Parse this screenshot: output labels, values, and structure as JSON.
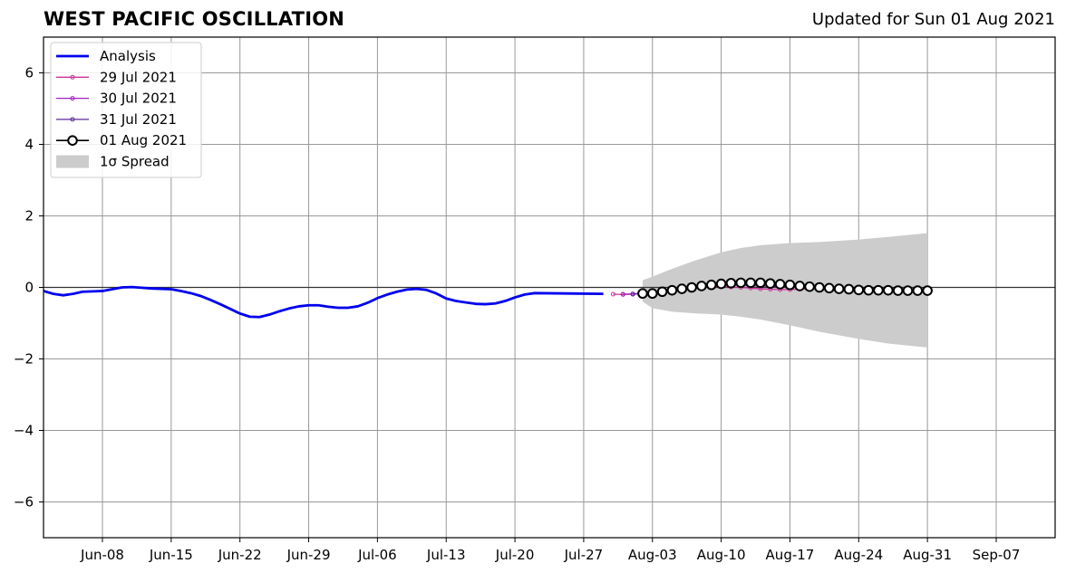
{
  "page": {
    "title": "WEST PACIFIC OSCILLATION",
    "updated": "Updated for Sun 01 Aug 2021"
  },
  "colors": {
    "analysis": "#0000ee",
    "jul29": "#cc3399",
    "jul30": "#a020c0",
    "jul31": "#5b2a9a",
    "aug01": "#000000",
    "spread": "#cccccc",
    "grid": "#999999"
  },
  "chart_data": {
    "type": "line",
    "title": "WEST PACIFIC OSCILLATION",
    "xlabel": "",
    "ylabel": "",
    "xlim": [
      "2021-06-02",
      "2021-09-13"
    ],
    "ylim": [
      -7,
      7
    ],
    "xticks": [
      "Jun-08",
      "Jun-15",
      "Jun-22",
      "Jun-29",
      "Jul-06",
      "Jul-13",
      "Jul-20",
      "Jul-27",
      "Aug-03",
      "Aug-10",
      "Aug-17",
      "Aug-24",
      "Aug-31",
      "Sep-07"
    ],
    "xtick_dates": [
      "2021-06-08",
      "2021-06-15",
      "2021-06-22",
      "2021-06-29",
      "2021-07-06",
      "2021-07-13",
      "2021-07-20",
      "2021-07-27",
      "2021-08-03",
      "2021-08-10",
      "2021-08-17",
      "2021-08-24",
      "2021-08-31",
      "2021-09-07"
    ],
    "yticks": [
      -6,
      -4,
      -2,
      0,
      2,
      4,
      6
    ],
    "ytick_labels": [
      "−6",
      "−4",
      "−2",
      "0",
      "2",
      "4",
      "6"
    ],
    "grid": true,
    "legend_position": "top-left",
    "legend": [
      "Analysis",
      "29 Jul 2021",
      "30 Jul 2021",
      "31 Jul 2021",
      "01 Aug 2021",
      "1σ Spread"
    ],
    "series": [
      {
        "name": "Analysis",
        "dates": [
          "2021-06-02",
          "2021-06-03",
          "2021-06-04",
          "2021-06-05",
          "2021-06-06",
          "2021-06-07",
          "2021-06-08",
          "2021-06-09",
          "2021-06-10",
          "2021-06-11",
          "2021-06-12",
          "2021-06-13",
          "2021-06-14",
          "2021-06-15",
          "2021-06-16",
          "2021-06-17",
          "2021-06-18",
          "2021-06-19",
          "2021-06-20",
          "2021-06-21",
          "2021-06-22",
          "2021-06-23",
          "2021-06-24",
          "2021-06-25",
          "2021-06-26",
          "2021-06-27",
          "2021-06-28",
          "2021-06-29",
          "2021-06-30",
          "2021-07-01",
          "2021-07-02",
          "2021-07-03",
          "2021-07-04",
          "2021-07-05",
          "2021-07-06",
          "2021-07-07",
          "2021-07-08",
          "2021-07-09",
          "2021-07-10",
          "2021-07-11",
          "2021-07-12",
          "2021-07-13",
          "2021-07-14",
          "2021-07-15",
          "2021-07-16",
          "2021-07-17",
          "2021-07-18",
          "2021-07-19",
          "2021-07-20",
          "2021-07-21",
          "2021-07-22",
          "2021-07-29"
        ],
        "values": [
          -0.1,
          -0.18,
          -0.22,
          -0.18,
          -0.12,
          -0.11,
          -0.1,
          -0.05,
          0.0,
          0.01,
          -0.01,
          -0.03,
          -0.04,
          -0.05,
          -0.1,
          -0.16,
          -0.24,
          -0.35,
          -0.47,
          -0.6,
          -0.73,
          -0.82,
          -0.83,
          -0.76,
          -0.67,
          -0.59,
          -0.53,
          -0.5,
          -0.5,
          -0.54,
          -0.57,
          -0.57,
          -0.53,
          -0.43,
          -0.3,
          -0.2,
          -0.12,
          -0.06,
          -0.04,
          -0.07,
          -0.17,
          -0.31,
          -0.38,
          -0.42,
          -0.46,
          -0.47,
          -0.45,
          -0.38,
          -0.28,
          -0.2,
          -0.16,
          -0.18
        ]
      },
      {
        "name": "29 Jul 2021",
        "dates": [
          "2021-07-30",
          "2021-07-31",
          "2021-08-01",
          "2021-08-02",
          "2021-08-03",
          "2021-08-04",
          "2021-08-05",
          "2021-08-06",
          "2021-08-07",
          "2021-08-08",
          "2021-08-09",
          "2021-08-10",
          "2021-08-11",
          "2021-08-12",
          "2021-08-13",
          "2021-08-14",
          "2021-08-15",
          "2021-08-16",
          "2021-08-17",
          "2021-08-18",
          "2021-08-19"
        ],
        "values": [
          -0.19,
          -0.2,
          -0.19,
          -0.17,
          -0.14,
          -0.11,
          -0.08,
          -0.05,
          -0.02,
          0.0,
          0.02,
          0.02,
          0.01,
          0.0,
          -0.02,
          -0.04,
          -0.05,
          -0.06,
          -0.06,
          -0.05,
          -0.04
        ]
      },
      {
        "name": "30 Jul 2021",
        "dates": [
          "2021-07-31",
          "2021-08-01",
          "2021-08-02",
          "2021-08-03",
          "2021-08-04",
          "2021-08-05",
          "2021-08-06",
          "2021-08-07",
          "2021-08-08",
          "2021-08-09",
          "2021-08-10",
          "2021-08-11",
          "2021-08-12",
          "2021-08-13",
          "2021-08-14",
          "2021-08-15",
          "2021-08-16"
        ],
        "values": [
          -0.19,
          -0.18,
          -0.16,
          -0.12,
          -0.09,
          -0.05,
          -0.02,
          0.01,
          0.04,
          0.06,
          0.07,
          0.07,
          0.06,
          0.05,
          0.04,
          0.03,
          0.02
        ]
      },
      {
        "name": "31 Jul 2021",
        "dates": [
          "2021-08-01",
          "2021-08-02",
          "2021-08-03",
          "2021-08-04",
          "2021-08-05",
          "2021-08-06",
          "2021-08-07",
          "2021-08-08",
          "2021-08-09",
          "2021-08-10",
          "2021-08-11",
          "2021-08-12",
          "2021-08-13",
          "2021-08-14"
        ],
        "values": [
          -0.19,
          -0.17,
          -0.14,
          -0.1,
          -0.06,
          -0.02,
          0.02,
          0.05,
          0.08,
          0.1,
          0.1,
          0.09,
          0.08,
          0.07
        ]
      },
      {
        "name": "01 Aug 2021",
        "dates": [
          "2021-08-02",
          "2021-08-03",
          "2021-08-04",
          "2021-08-05",
          "2021-08-06",
          "2021-08-07",
          "2021-08-08",
          "2021-08-09",
          "2021-08-10",
          "2021-08-11",
          "2021-08-12",
          "2021-08-13",
          "2021-08-14",
          "2021-08-15",
          "2021-08-16",
          "2021-08-17",
          "2021-08-18",
          "2021-08-19",
          "2021-08-20",
          "2021-08-21",
          "2021-08-22",
          "2021-08-23",
          "2021-08-24",
          "2021-08-25",
          "2021-08-26",
          "2021-08-27",
          "2021-08-28",
          "2021-08-29",
          "2021-08-30",
          "2021-08-31"
        ],
        "values": [
          -0.17,
          -0.17,
          -0.12,
          -0.08,
          -0.04,
          0.0,
          0.04,
          0.07,
          0.1,
          0.12,
          0.13,
          0.13,
          0.13,
          0.11,
          0.09,
          0.07,
          0.04,
          0.02,
          0.0,
          -0.02,
          -0.04,
          -0.05,
          -0.07,
          -0.08,
          -0.08,
          -0.08,
          -0.09,
          -0.09,
          -0.09,
          -0.09
        ]
      }
    ],
    "spread": {
      "name": "1σ Spread",
      "dates": [
        "2021-08-02",
        "2021-08-03",
        "2021-08-05",
        "2021-08-07",
        "2021-08-10",
        "2021-08-12",
        "2021-08-14",
        "2021-08-17",
        "2021-08-20",
        "2021-08-24",
        "2021-08-27",
        "2021-08-31"
      ],
      "upper": [
        0.2,
        0.3,
        0.52,
        0.72,
        0.98,
        1.1,
        1.18,
        1.24,
        1.27,
        1.34,
        1.41,
        1.52
      ],
      "lower": [
        -0.4,
        -0.58,
        -0.68,
        -0.72,
        -0.76,
        -0.82,
        -0.9,
        -1.06,
        -1.24,
        -1.44,
        -1.57,
        -1.68
      ]
    }
  }
}
